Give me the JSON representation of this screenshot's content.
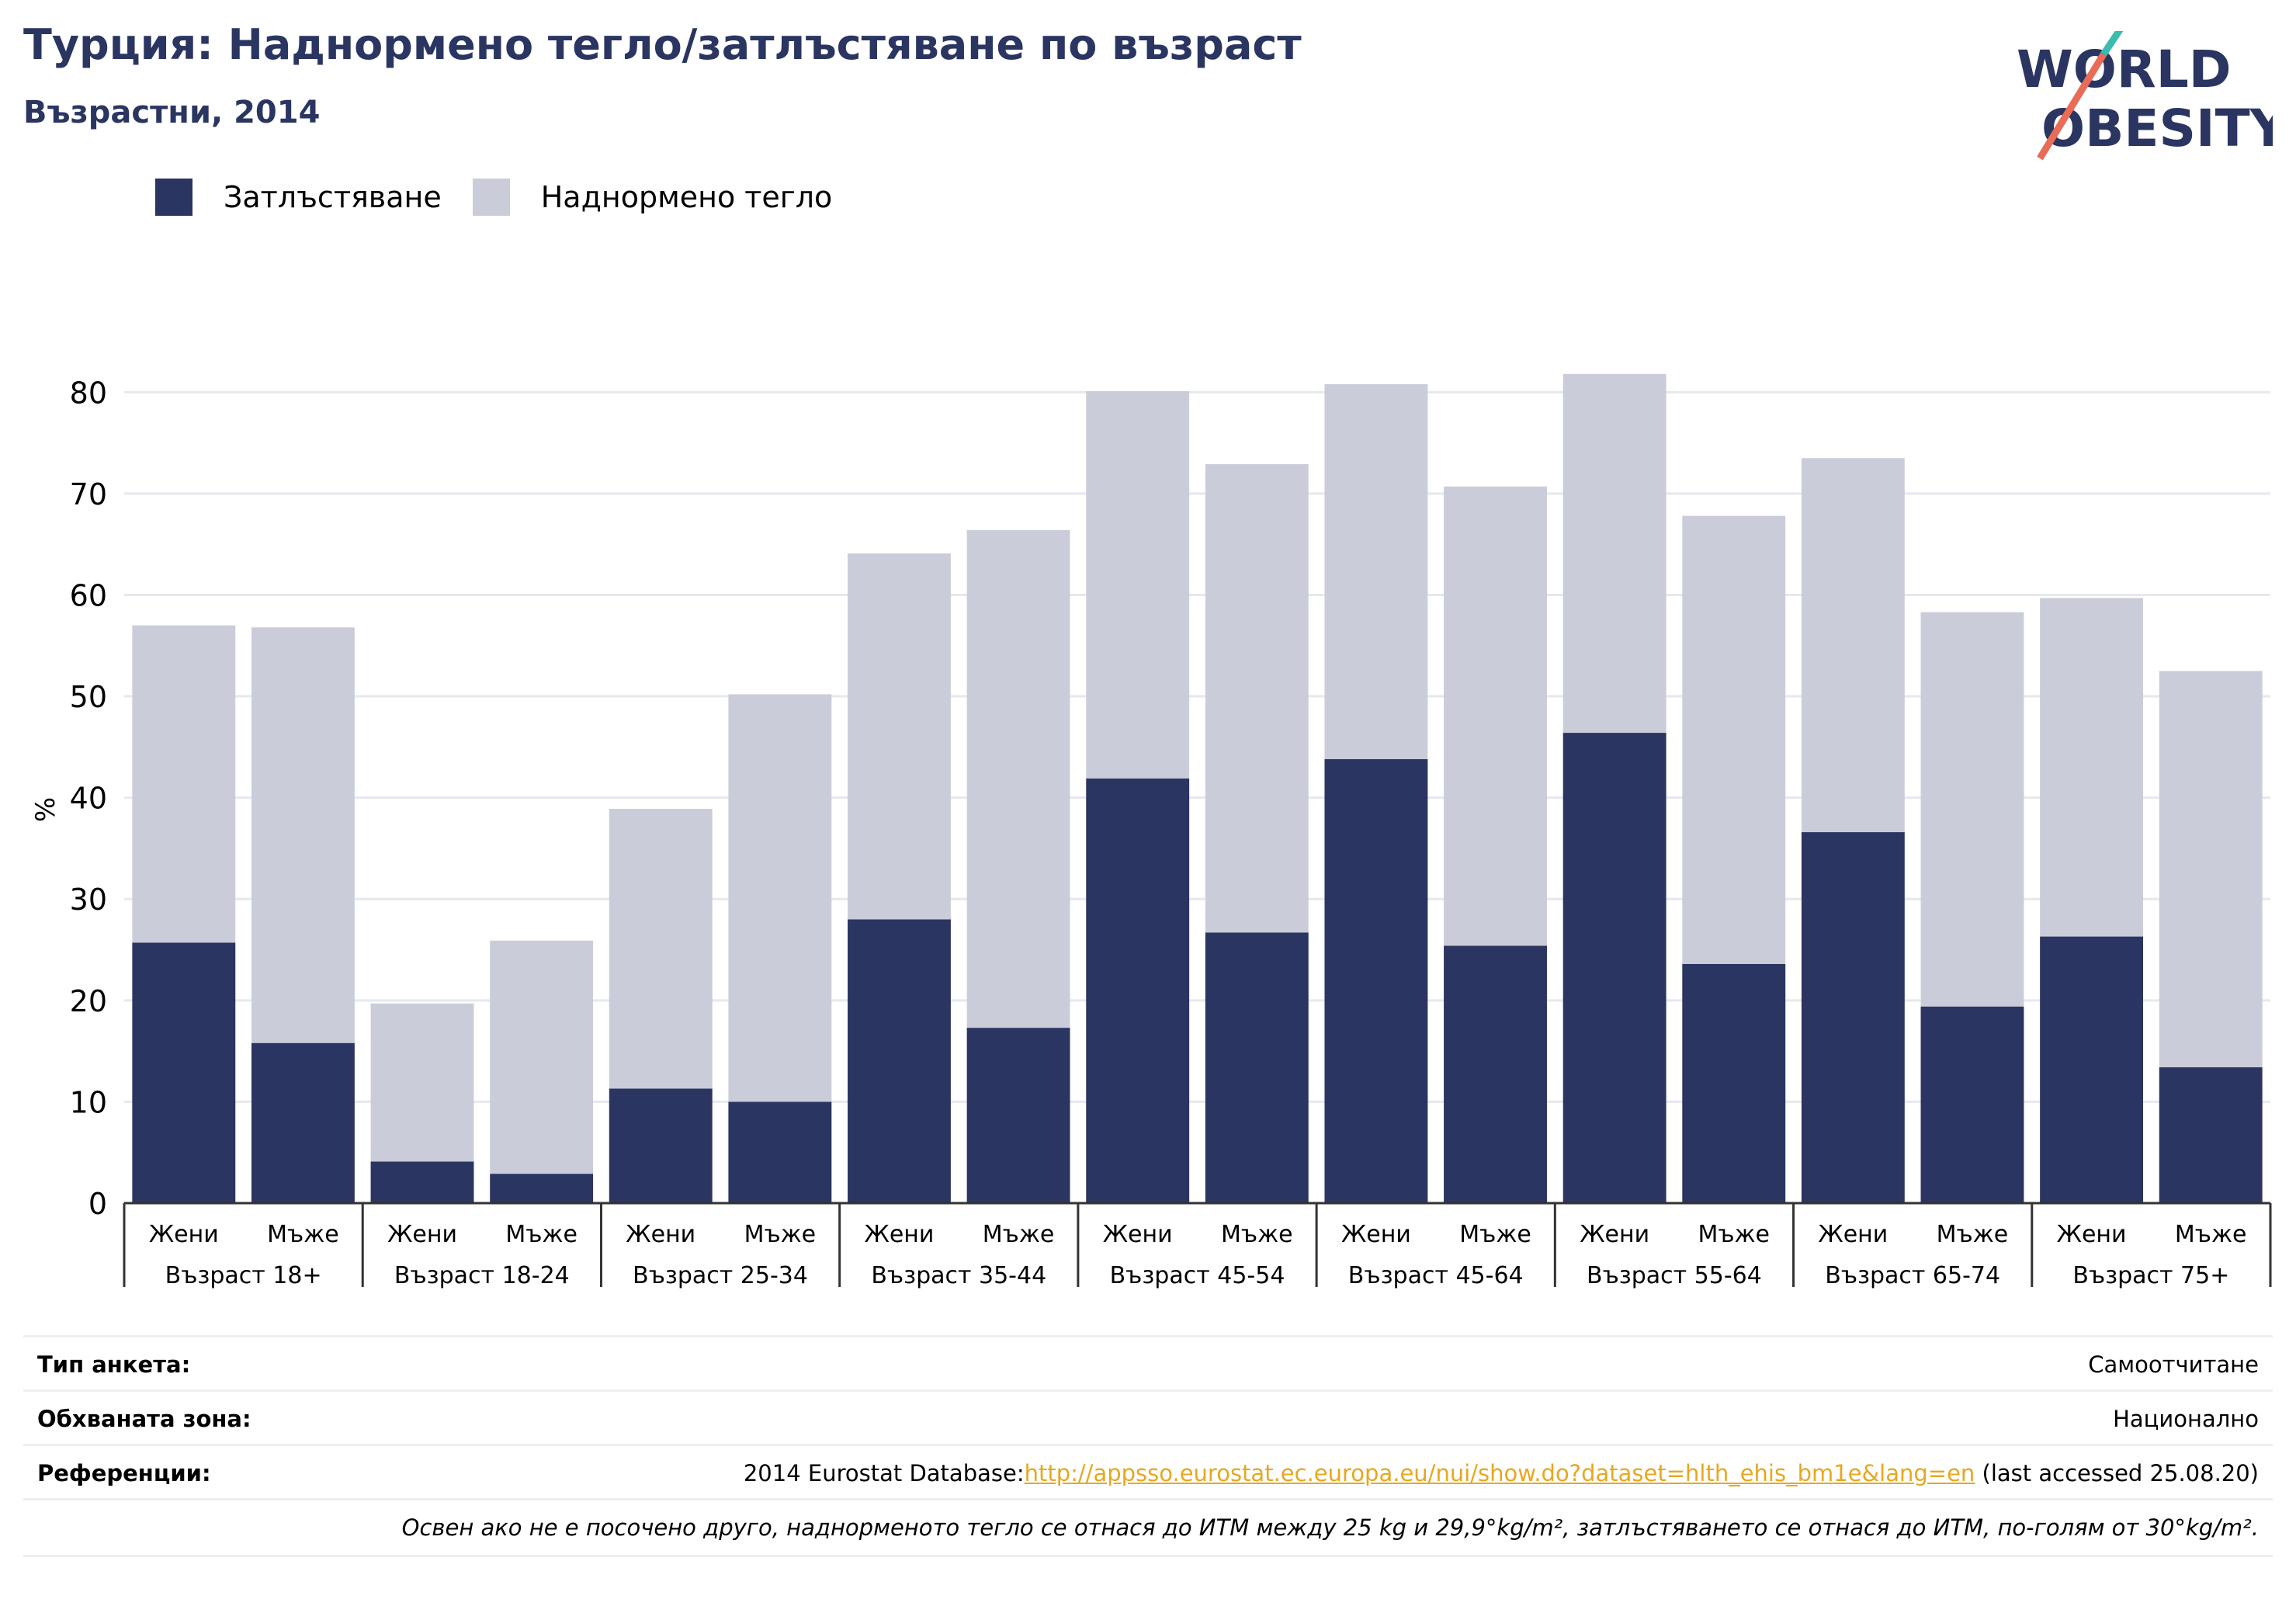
{
  "title": "Турция: Наднормено тегло/затлъстяване по възраст",
  "subtitle": "Възрастни, 2014",
  "logo": {
    "line1": "WORLD",
    "line2": "OBESITY"
  },
  "colors": {
    "obesity": "#2a3561",
    "overweight": "#cacdd9",
    "title": "#2a3561",
    "link": "#e7a81f"
  },
  "legend": [
    {
      "label": "Затлъстяване",
      "color": "#2a3561"
    },
    {
      "label": "Наднормено тегло",
      "color": "#cacdd9"
    }
  ],
  "chart_data": {
    "type": "bar",
    "stacked": true,
    "ylabel": "%",
    "ylim": [
      0,
      85
    ],
    "yticks": [
      0,
      10,
      20,
      30,
      40,
      50,
      60,
      70,
      80
    ],
    "grid": true,
    "legend_position": "top-left",
    "groups": [
      "Възраст 18+",
      "Възраст 18-24",
      "Възраст 25-34",
      "Възраст 35-44",
      "Възраст 45-54",
      "Възраст 45-64",
      "Възраст 55-64",
      "Възраст 65-74",
      "Възраст 75+"
    ],
    "sub_categories": [
      "Жени",
      "Мъже"
    ],
    "series": [
      {
        "name": "Затлъстяване",
        "values": [
          25.7,
          15.8,
          4.1,
          2.9,
          11.3,
          10.0,
          28.0,
          17.3,
          41.9,
          26.7,
          43.8,
          25.4,
          46.4,
          23.6,
          36.6,
          19.4,
          26.3,
          13.4
        ]
      },
      {
        "name": "Наднормено тегло",
        "values": [
          31.3,
          41.0,
          15.6,
          23.0,
          27.6,
          40.2,
          36.1,
          49.1,
          38.2,
          46.2,
          37.0,
          45.3,
          35.4,
          44.2,
          36.9,
          38.9,
          33.4,
          39.1
        ]
      }
    ]
  },
  "info": [
    {
      "key": "Тип анкета:",
      "value": "Самоотчитане"
    },
    {
      "key": "Обхваната зона:",
      "value": "Национално"
    },
    {
      "key": "Референции:",
      "prefix": "2014 Eurostat Database:",
      "link": "http://appsso.eurostat.ec.europa.eu/nui/show.do?dataset=hlth_ehis_bm1e&lang=en",
      "suffix": " (last accessed 25.08.20)"
    }
  ],
  "note": "Освен ако не е посочено друго, наднорменото тегло се отнася до ИТМ между 25 kg и 29,9°kg/m², затлъстяването се отнася до ИТМ, по-голям от 30°kg/m²."
}
